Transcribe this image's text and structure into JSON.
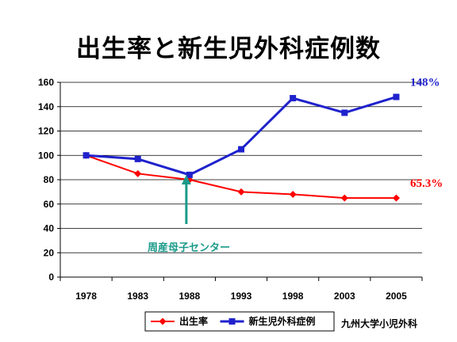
{
  "chart_data": {
    "type": "line",
    "title": "出生率と新生児外科症例数",
    "categories": [
      "1978",
      "1983",
      "1988",
      "1993",
      "1998",
      "2003",
      "2005"
    ],
    "series": [
      {
        "name": "出生率",
        "color": "#ff0000",
        "marker": "diamond",
        "values": [
          100,
          85,
          80,
          70,
          68,
          65,
          65
        ]
      },
      {
        "name": "新生児外科症例",
        "color": "#1f22cc",
        "marker": "square",
        "values": [
          100,
          97,
          84,
          105,
          147,
          135,
          148
        ]
      }
    ],
    "ylim": [
      0,
      160
    ],
    "yticks": [
      0,
      20,
      40,
      60,
      80,
      100,
      120,
      140,
      160
    ],
    "grid": true,
    "legend_position": "bottom",
    "end_labels": [
      {
        "series": "新生児外科症例",
        "text": "148%",
        "color": "#1f22cc"
      },
      {
        "series": "出生率",
        "text": "65.3%",
        "color": "#ff0000"
      }
    ],
    "annotation": {
      "text": "周産母子センター",
      "category": "1988",
      "color": "#1a9a8a"
    },
    "credit": "九州大学小児外科"
  }
}
